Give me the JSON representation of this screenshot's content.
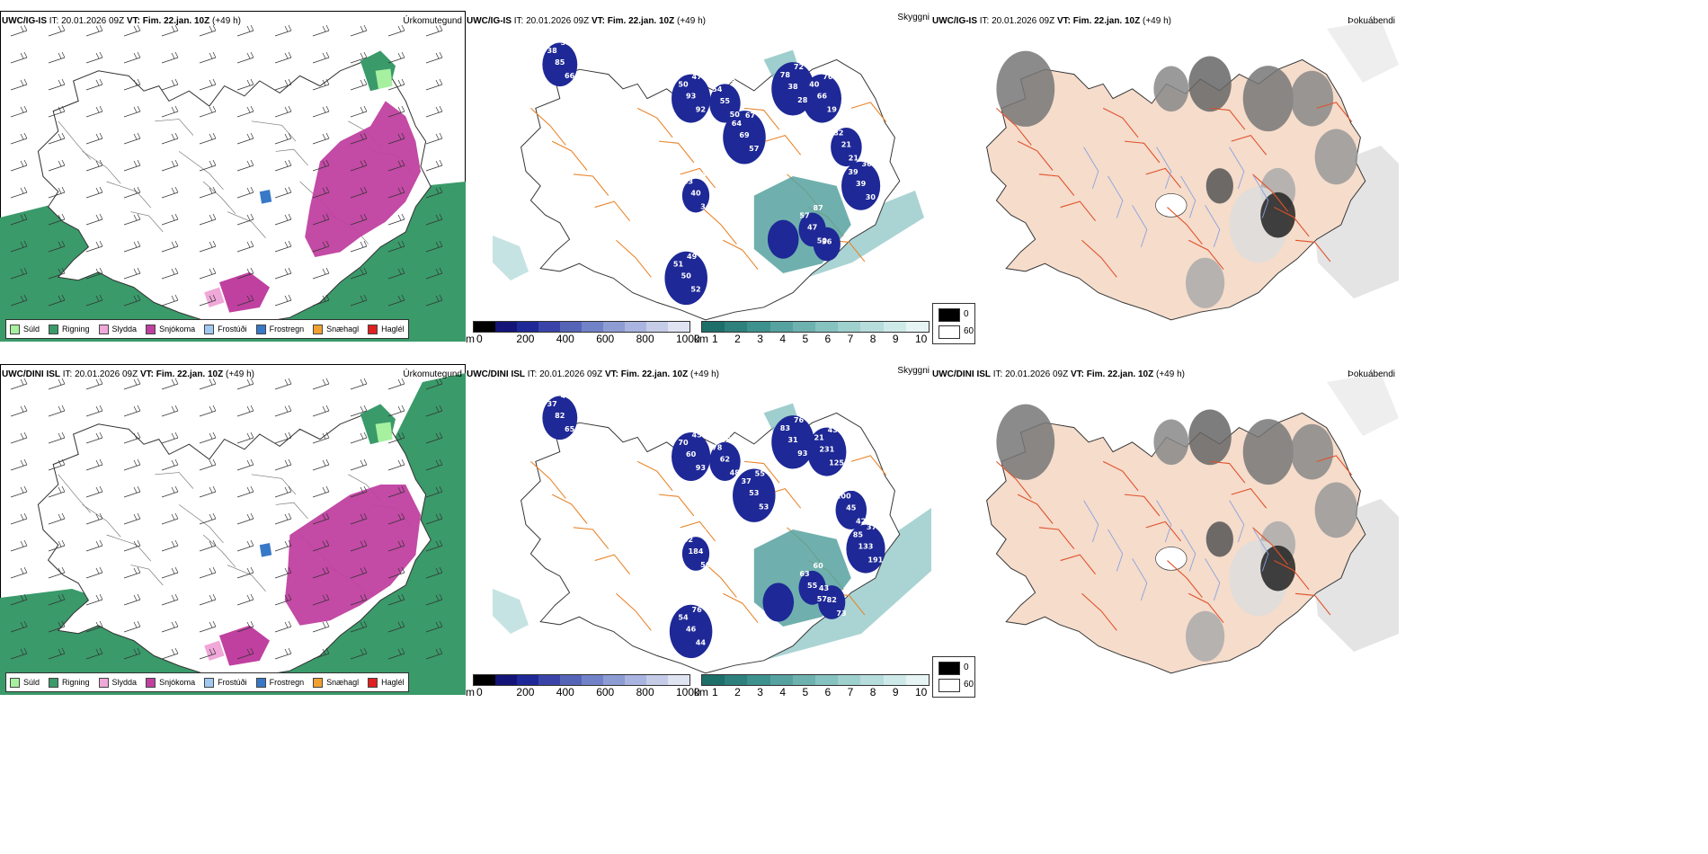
{
  "rows": [
    {
      "model": "UWC/IG-IS",
      "it_label": "IT:",
      "it_value": "20.01.2026 09Z",
      "vt_label": "VT:",
      "vt_value": "Fim. 22.jan. 10Z",
      "lead": "(+49 h)",
      "precip_title": "Úrkomutegund",
      "cloud_title": "Skyggni",
      "fog_title": "Þokuábendi",
      "labels": [
        "85",
        "66",
        "38",
        "51",
        "93",
        "92",
        "50",
        "47",
        "55",
        "50",
        "54",
        "63",
        "69",
        "57",
        "64",
        "67",
        "38",
        "28",
        "78",
        "72",
        "66",
        "19",
        "40",
        "76",
        "21",
        "214",
        "82",
        "17",
        "39",
        "30",
        "39",
        "36",
        "40",
        "34",
        "43",
        "14",
        "50",
        "52",
        "51",
        "49",
        "47",
        "50",
        "57",
        "87",
        "36"
      ]
    },
    {
      "model": "UWC/DINI ISL",
      "it_label": "IT:",
      "it_value": "20.01.2026 09Z",
      "vt_label": "VT:",
      "vt_value": "Fim. 22.jan. 10Z",
      "lead": "(+49 h)",
      "precip_title": "Úrkomutegund",
      "cloud_title": "Skyggni",
      "fog_title": "Þokuábendi",
      "labels": [
        "82",
        "65",
        "37",
        "48",
        "60",
        "93",
        "70",
        "45",
        "62",
        "48",
        "78",
        "63",
        "53",
        "53",
        "37",
        "55",
        "31",
        "93",
        "83",
        "76",
        "231",
        "125",
        "21",
        "43",
        "45",
        "42",
        "100",
        "209",
        "133",
        "191",
        "85",
        "37",
        "184",
        "56",
        "52",
        "48",
        "46",
        "44",
        "54",
        "76",
        "55",
        "57",
        "63",
        "60",
        "82",
        "73",
        "43"
      ]
    }
  ],
  "precip_legend": [
    {
      "label": "Súld",
      "color": "#a6f0a0"
    },
    {
      "label": "Rigning",
      "color": "#3a9a6a"
    },
    {
      "label": "Slydda",
      "color": "#f0a8d8"
    },
    {
      "label": "Snjókoma",
      "color": "#c040a0"
    },
    {
      "label": "Frostúði",
      "color": "#a0c8f0"
    },
    {
      "label": "Frostregn",
      "color": "#3878c8"
    },
    {
      "label": "Snæhagl",
      "color": "#f0a030"
    },
    {
      "label": "Haglél",
      "color": "#e02020"
    }
  ],
  "cloud_base_scale": {
    "unit": "m",
    "ticks": [
      "0",
      "200",
      "400",
      "600",
      "800",
      "1000"
    ],
    "colors": [
      "#000000",
      "#141478",
      "#1e2896",
      "#3a44a8",
      "#5664b8",
      "#7282c8",
      "#8e9cd4",
      "#aab4e0",
      "#c4cce8",
      "#dfe3f2"
    ]
  },
  "visibility_scale": {
    "unit": "km",
    "ticks": [
      "1",
      "2",
      "3",
      "4",
      "5",
      "6",
      "7",
      "8",
      "9",
      "10"
    ],
    "colors": [
      "#1e6e6a",
      "#2e807c",
      "#3e928e",
      "#56a2a0",
      "#6eb2b0",
      "#86c2c0",
      "#9ed0ce",
      "#b6dcdb",
      "#ceeae8",
      "#e6f4f4"
    ]
  },
  "fog_scale": {
    "values": [
      "0",
      "60"
    ],
    "colors": [
      "#000000",
      "#ffffff"
    ]
  }
}
